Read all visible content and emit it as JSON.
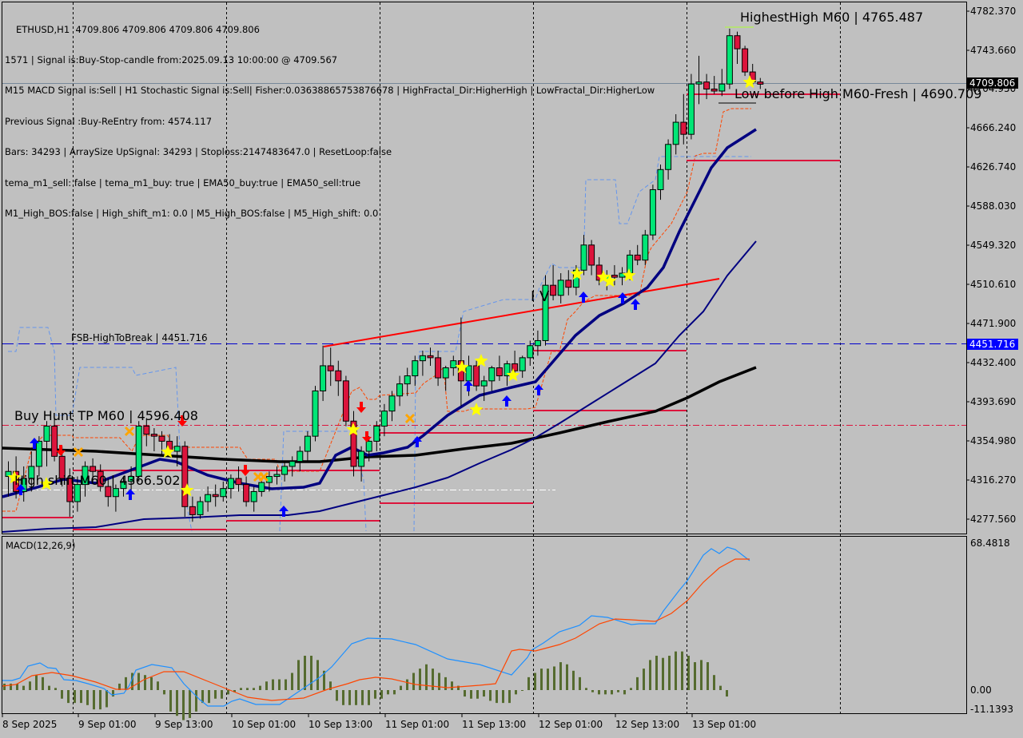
{
  "window": {
    "symbol_timeframe": "ETHUSD,H1",
    "ohlc": "4709.806 4709.806 4709.806 4709.806"
  },
  "info_lines": [
    "1571 | Signal is:Buy-Stop-candle from:2025.09.13 10:00:00 @ 4709.567",
    "M15 MACD Signal is:Sell | H1 Stochastic Signal is:Sell| Fisher:0.03638865753876678 | HighFractal_Dir:HigherHigh | LowFractal_Dir:HigherLow",
    "Previous Signal :Buy-ReEntry from: 4574.117",
    "Bars: 34293 | ArraySize UpSignal: 34293 | Stoploss:2147483647.0 | ResetLoop:false",
    "tema_m1_sell: false | tema_m1_buy: true | EMA50_buy:true | EMA50_sell:true",
    "M1_High_BOS:false | High_shift_m1: 0.0 | M5_High_BOS:false | M5_High_shift: 0.0"
  ],
  "annotations": {
    "highest_high": "HighestHigh    M60 | 4765.487",
    "low_before_high": "Low before High    M60-Fresh | 4690.709",
    "fsb_high_to_break": "FSB-HighToBreak | 4451.716",
    "buy_hunt_tp": "Buy Hunt TP M60 | 4596.408",
    "high_shift": "High shift M60 | 4366.502",
    "wave_label": "I V"
  },
  "price_axis": {
    "ticks": [
      "4782.370",
      "4743.660",
      "4704.950",
      "4666.240",
      "4626.740",
      "4588.030",
      "4549.320",
      "4510.610",
      "4471.900",
      "4432.400",
      "4393.690",
      "4354.980",
      "4316.270",
      "4277.560"
    ],
    "current_price_tag": "4709.806",
    "fsb_tag": "4451.716"
  },
  "macd_axis": {
    "title": "MACD(12,26,9)",
    "ticks": [
      "68.4818",
      "0.00",
      "-11.1393"
    ]
  },
  "time_axis": {
    "labels": [
      "8 Sep 2025",
      "9 Sep 01:00",
      "9 Sep 13:00",
      "10 Sep 01:00",
      "10 Sep 13:00",
      "11 Sep 01:00",
      "11 Sep 13:00",
      "12 Sep 01:00",
      "12 Sep 13:00",
      "13 Sep 01:00"
    ]
  },
  "colors": {
    "background": "#c0c0c0",
    "bull": "#00e676",
    "bear": "#dc143c",
    "ema_fast": "#000080",
    "ema_slow": "#000000",
    "level_red": "#dc143c",
    "fsb_blue": "#0000cd",
    "macd_line": "#1e90ff",
    "signal_line": "#ff4500",
    "histogram": "#556b2f",
    "channel_upper": "#6495ed",
    "channel_lower": "#ff4500",
    "star": "#ffff00",
    "arrow_up": "#0000ff",
    "arrow_down": "#ff0000"
  },
  "chart_data": {
    "type": "candlestick",
    "symbol": "ETHUSD",
    "timeframe": "H1",
    "ylim": [
      4262,
      4790
    ],
    "candles": [
      [
        4320,
        4335,
        4300,
        4325
      ],
      [
        4325,
        4340,
        4298,
        4305
      ],
      [
        4305,
        4330,
        4295,
        4318
      ],
      [
        4318,
        4345,
        4305,
        4330
      ],
      [
        4330,
        4360,
        4320,
        4355
      ],
      [
        4355,
        4375,
        4330,
        4370
      ],
      [
        4370,
        4378,
        4335,
        4340
      ],
      [
        4340,
        4350,
        4310,
        4318
      ],
      [
        4318,
        4328,
        4280,
        4295
      ],
      [
        4295,
        4320,
        4285,
        4312
      ],
      [
        4312,
        4335,
        4300,
        4330
      ],
      [
        4330,
        4338,
        4315,
        4325
      ],
      [
        4325,
        4332,
        4305,
        4310
      ],
      [
        4310,
        4318,
        4290,
        4300
      ],
      [
        4300,
        4312,
        4285,
        4308
      ],
      [
        4308,
        4320,
        4300,
        4315
      ],
      [
        4315,
        4330,
        4305,
        4320
      ],
      [
        4320,
        4375,
        4315,
        4370
      ],
      [
        4370,
        4378,
        4350,
        4362
      ],
      [
        4362,
        4368,
        4345,
        4360
      ],
      [
        4360,
        4365,
        4340,
        4355
      ],
      [
        4355,
        4362,
        4340,
        4345
      ],
      [
        4345,
        4360,
        4330,
        4350
      ],
      [
        4350,
        4355,
        4280,
        4290
      ],
      [
        4290,
        4300,
        4275,
        4282
      ],
      [
        4282,
        4300,
        4278,
        4295
      ],
      [
        4295,
        4310,
        4285,
        4302
      ],
      [
        4302,
        4312,
        4290,
        4300
      ],
      [
        4300,
        4315,
        4295,
        4308
      ],
      [
        4308,
        4322,
        4298,
        4318
      ],
      [
        4318,
        4330,
        4305,
        4312
      ],
      [
        4312,
        4320,
        4290,
        4295
      ],
      [
        4295,
        4310,
        4285,
        4305
      ],
      [
        4305,
        4318,
        4300,
        4314
      ],
      [
        4314,
        4325,
        4305,
        4320
      ],
      [
        4320,
        4330,
        4312,
        4322
      ],
      [
        4322,
        4335,
        4315,
        4330
      ],
      [
        4330,
        4340,
        4320,
        4335
      ],
      [
        4335,
        4350,
        4325,
        4345
      ],
      [
        4345,
        4365,
        4335,
        4360
      ],
      [
        4360,
        4410,
        4355,
        4405
      ],
      [
        4405,
        4450,
        4395,
        4430
      ],
      [
        4430,
        4448,
        4410,
        4425
      ],
      [
        4425,
        4435,
        4400,
        4415
      ],
      [
        4415,
        4420,
        4370,
        4375
      ],
      [
        4375,
        4385,
        4320,
        4330
      ],
      [
        4330,
        4350,
        4315,
        4345
      ],
      [
        4345,
        4360,
        4335,
        4355
      ],
      [
        4355,
        4375,
        4345,
        4370
      ],
      [
        4370,
        4392,
        4360,
        4385
      ],
      [
        4385,
        4405,
        4375,
        4400
      ],
      [
        4400,
        4420,
        4390,
        4412
      ],
      [
        4412,
        4428,
        4400,
        4420
      ],
      [
        4420,
        4440,
        4410,
        4435
      ],
      [
        4435,
        4445,
        4420,
        4440
      ],
      [
        4440,
        4448,
        4430,
        4438
      ],
      [
        4438,
        4445,
        4410,
        4418
      ],
      [
        4418,
        4430,
        4405,
        4428
      ],
      [
        4428,
        4440,
        4420,
        4435
      ],
      [
        4435,
        4478,
        4390,
        4415
      ],
      [
        4415,
        4440,
        4400,
        4430
      ],
      [
        4430,
        4435,
        4405,
        4410
      ],
      [
        4410,
        4420,
        4395,
        4415
      ],
      [
        4415,
        4430,
        4405,
        4428
      ],
      [
        4428,
        4440,
        4415,
        4420
      ],
      [
        4420,
        4435,
        4410,
        4432
      ],
      [
        4432,
        4445,
        4420,
        4425
      ],
      [
        4425,
        4440,
        4418,
        4438
      ],
      [
        4438,
        4455,
        4430,
        4450
      ],
      [
        4450,
        4465,
        4440,
        4455
      ],
      [
        4455,
        4520,
        4450,
        4510
      ],
      [
        4510,
        4530,
        4495,
        4500
      ],
      [
        4500,
        4522,
        4492,
        4515
      ],
      [
        4515,
        4525,
        4500,
        4508
      ],
      [
        4508,
        4530,
        4500,
        4525
      ],
      [
        4525,
        4560,
        4520,
        4550
      ],
      [
        4550,
        4555,
        4520,
        4530
      ],
      [
        4530,
        4538,
        4510,
        4515
      ],
      [
        4515,
        4525,
        4505,
        4520
      ],
      [
        4520,
        4530,
        4510,
        4518
      ],
      [
        4518,
        4528,
        4510,
        4522
      ],
      [
        4522,
        4545,
        4515,
        4540
      ],
      [
        4540,
        4550,
        4530,
        4535
      ],
      [
        4535,
        4565,
        4530,
        4560
      ],
      [
        4560,
        4610,
        4555,
        4605
      ],
      [
        4605,
        4630,
        4595,
        4625
      ],
      [
        4625,
        4655,
        4615,
        4650
      ],
      [
        4650,
        4680,
        4640,
        4672
      ],
      [
        4672,
        4700,
        4650,
        4660
      ],
      [
        4660,
        4720,
        4655,
        4710
      ],
      [
        4710,
        4738,
        4690,
        4712
      ],
      [
        4712,
        4720,
        4695,
        4705
      ],
      [
        4705,
        4718,
        4700,
        4703
      ],
      [
        4703,
        4725,
        4698,
        4710
      ],
      [
        4710,
        4765,
        4705,
        4758
      ],
      [
        4758,
        4762,
        4730,
        4745
      ],
      [
        4745,
        4748,
        4718,
        4722
      ],
      [
        4722,
        4730,
        4708,
        4712
      ],
      [
        4712,
        4716,
        4705,
        4709.806
      ]
    ]
  }
}
